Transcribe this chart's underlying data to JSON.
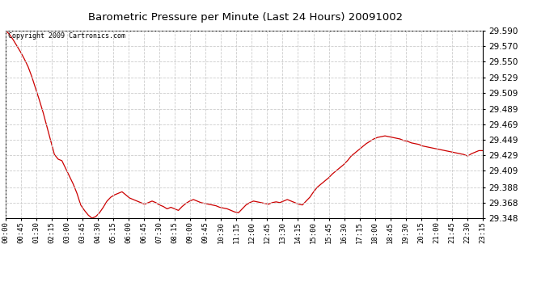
{
  "title": "Barometric Pressure per Minute (Last 24 Hours) 20091002",
  "copyright": "Copyright 2009 Cartronics.com",
  "line_color": "#cc0000",
  "bg_color": "#ffffff",
  "grid_color": "#cccccc",
  "ylim": [
    29.348,
    29.59
  ],
  "yticks": [
    29.348,
    29.368,
    29.388,
    29.409,
    29.429,
    29.449,
    29.469,
    29.489,
    29.509,
    29.529,
    29.55,
    29.57,
    29.59
  ],
  "xtick_labels": [
    "00:00",
    "00:45",
    "01:30",
    "02:15",
    "03:00",
    "03:45",
    "04:30",
    "05:15",
    "06:00",
    "06:45",
    "07:30",
    "08:15",
    "09:00",
    "09:45",
    "10:30",
    "11:15",
    "12:00",
    "12:45",
    "13:30",
    "14:15",
    "15:00",
    "15:45",
    "16:30",
    "17:15",
    "18:00",
    "18:45",
    "19:30",
    "20:15",
    "21:00",
    "21:45",
    "22:30",
    "23:15"
  ],
  "pressure_data": [
    29.59,
    29.585,
    29.578,
    29.57,
    29.562,
    29.553,
    29.543,
    29.53,
    29.515,
    29.5,
    29.484,
    29.466,
    29.448,
    29.43,
    29.424,
    29.422,
    29.412,
    29.402,
    29.392,
    29.38,
    29.365,
    29.358,
    29.352,
    29.348,
    29.35,
    29.355,
    29.362,
    29.37,
    29.375,
    29.378,
    29.38,
    29.382,
    29.378,
    29.374,
    29.372,
    29.37,
    29.368,
    29.366,
    29.368,
    29.37,
    29.368,
    29.365,
    29.363,
    29.36,
    29.362,
    29.36,
    29.358,
    29.363,
    29.367,
    29.37,
    29.372,
    29.37,
    29.368,
    29.367,
    29.366,
    29.365,
    29.364,
    29.362,
    29.361,
    29.36,
    29.358,
    29.356,
    29.355,
    29.36,
    29.365,
    29.368,
    29.37,
    29.369,
    29.368,
    29.367,
    29.366,
    29.368,
    29.369,
    29.368,
    29.37,
    29.372,
    29.37,
    29.368,
    29.366,
    29.365,
    29.37,
    29.375,
    29.382,
    29.388,
    29.392,
    29.396,
    29.4,
    29.405,
    29.409,
    29.413,
    29.417,
    29.422,
    29.428,
    29.432,
    29.436,
    29.44,
    29.444,
    29.447,
    29.45,
    29.452,
    29.453,
    29.454,
    29.453,
    29.452,
    29.451,
    29.45,
    29.448,
    29.447,
    29.445,
    29.444,
    29.443,
    29.441,
    29.44,
    29.439,
    29.438,
    29.437,
    29.436,
    29.435,
    29.434,
    29.433,
    29.432,
    29.431,
    29.43,
    29.428,
    29.431,
    29.433,
    29.435,
    29.435
  ]
}
